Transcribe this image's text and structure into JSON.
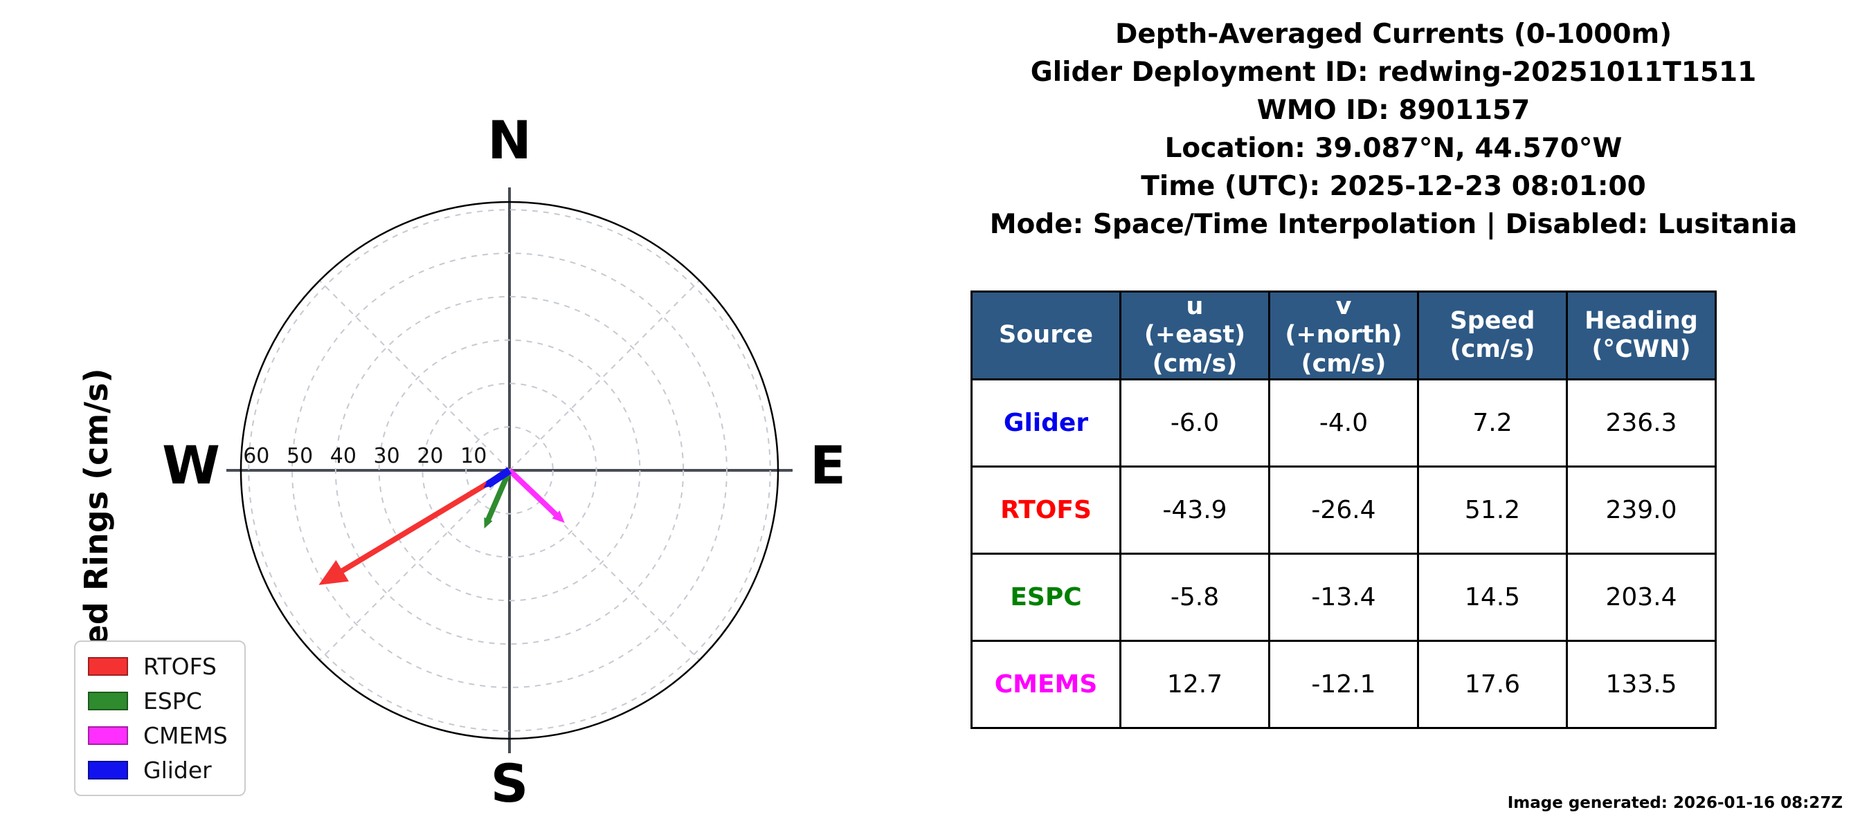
{
  "header": {
    "lines": [
      "Depth-Averaged Currents (0-1000m)",
      "Glider Deployment ID: redwing-20251011T1511",
      "WMO ID: 8901157",
      "Location: 39.087°N, 44.570°W",
      "Time (UTC): 2025-12-23 08:01:00",
      "Mode: Space/Time Interpolation | Disabled: Lusitania"
    ]
  },
  "chart_data": {
    "type": "scatter",
    "subtype": "polar-current-vectors",
    "axis_label": "Speed Rings (cm/s)",
    "compass": {
      "north": "N",
      "east": "E",
      "south": "S",
      "west": "W"
    },
    "ring_values_cms": [
      10,
      20,
      30,
      40,
      50,
      60
    ],
    "r_max_cms": 61.8,
    "grid": {
      "ring_style": "dashed",
      "spokes_deg": [
        45,
        135,
        225,
        315
      ]
    },
    "legend_position": "lower-left",
    "vectors": [
      {
        "name": "RTOFS",
        "u": -43.9,
        "v": -26.4,
        "speed": 51.2,
        "heading": 239.0,
        "color": "#f53232",
        "line_width": 8
      },
      {
        "name": "ESPC",
        "u": -5.8,
        "v": -13.4,
        "speed": 14.5,
        "heading": 203.4,
        "color": "#2e8b2e",
        "line_width": 8
      },
      {
        "name": "CMEMS",
        "u": 12.7,
        "v": -12.1,
        "speed": 17.6,
        "heading": 133.5,
        "color": "#ff2fff",
        "line_width": 8
      },
      {
        "name": "Glider",
        "u": -6.0,
        "v": -4.0,
        "speed": 7.2,
        "heading": 236.3,
        "color": "#1212ef",
        "line_width": 11
      }
    ]
  },
  "table": {
    "header_bg": "#2e5984",
    "columns": [
      "Source",
      "u\n(+east)\n(cm/s)",
      "v\n(+north)\n(cm/s)",
      "Speed\n(cm/s)",
      "Heading\n(°CWN)"
    ],
    "rows": [
      {
        "source": "Glider",
        "color": "#0000ee",
        "cells": [
          "-6.0",
          "-4.0",
          "7.2",
          "236.3"
        ]
      },
      {
        "source": "RTOFS",
        "color": "#ff0000",
        "cells": [
          "-43.9",
          "-26.4",
          "51.2",
          "239.0"
        ]
      },
      {
        "source": "ESPC",
        "color": "#008000",
        "cells": [
          "-5.8",
          "-13.4",
          "14.5",
          "203.4"
        ]
      },
      {
        "source": "CMEMS",
        "color": "#ff00ff",
        "cells": [
          "12.7",
          "-12.1",
          "17.6",
          "133.5"
        ]
      }
    ]
  },
  "footer": {
    "generated": "Image generated: 2026-01-16 08:27Z"
  }
}
